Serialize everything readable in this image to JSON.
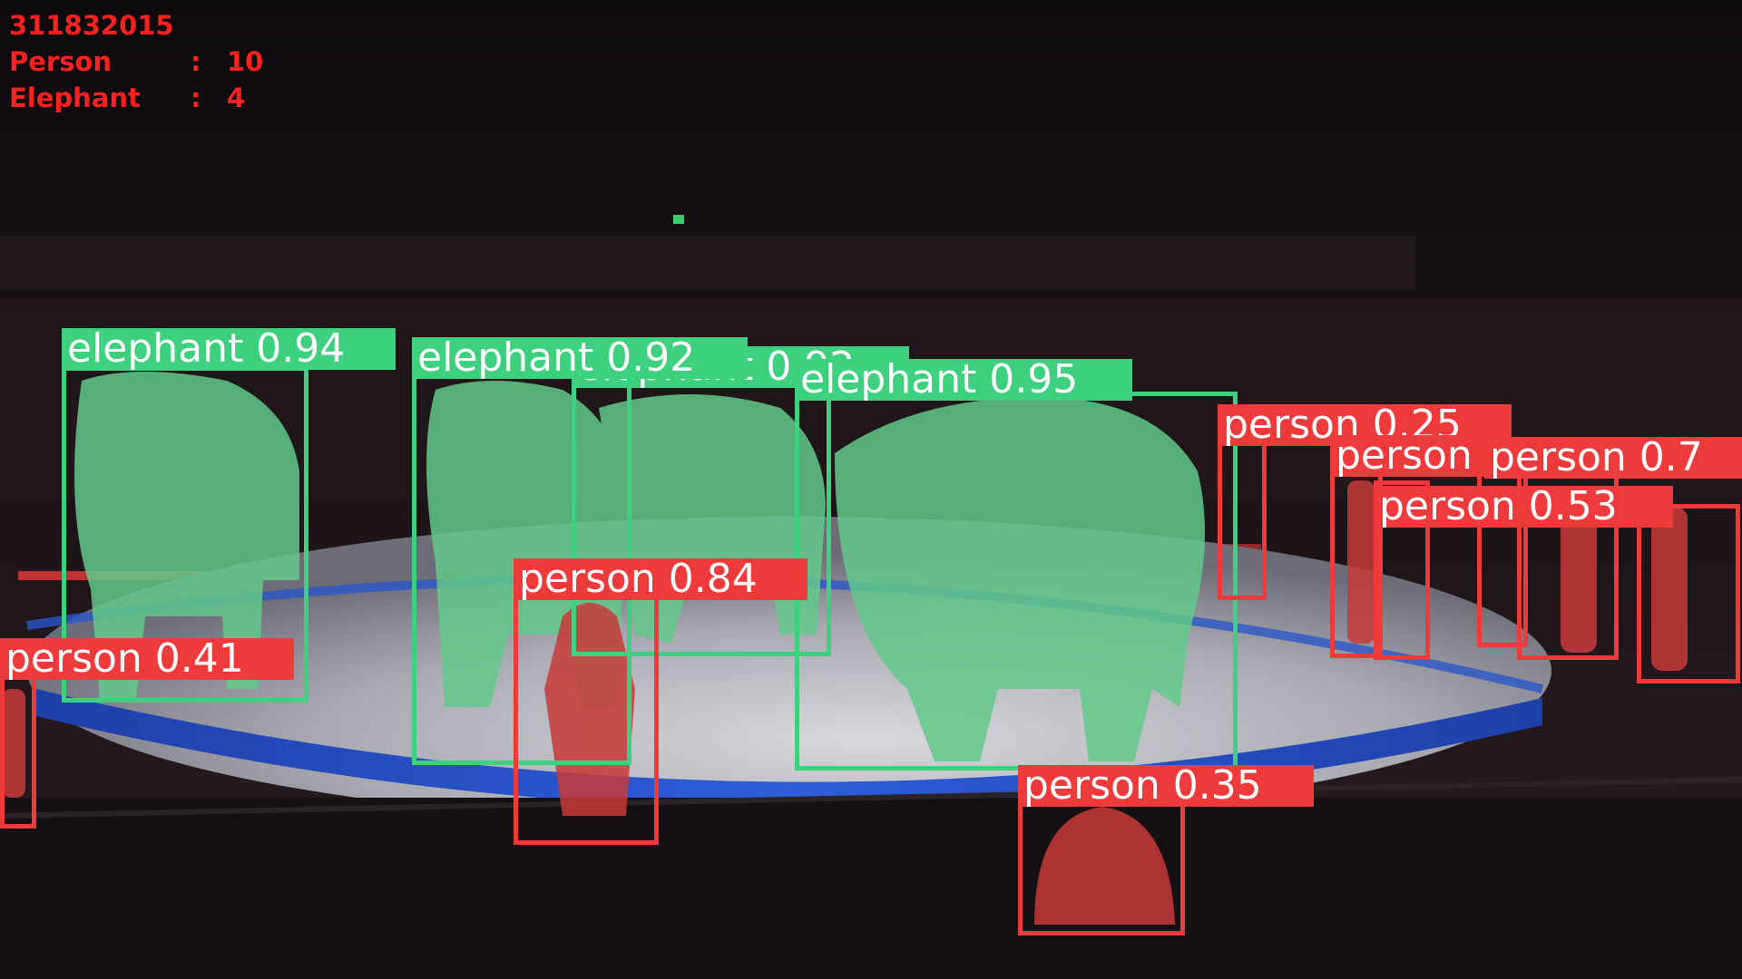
{
  "hud": {
    "frame_id": "311832015",
    "rows": [
      {
        "label": "Person",
        "sep": ":",
        "count": "10"
      },
      {
        "label": "Elephant",
        "sep": ":",
        "count": "4"
      }
    ]
  },
  "colors": {
    "person": "#ee3a3a",
    "elephant": "#3dd07e",
    "hud_text": "#ff2020"
  },
  "detections": [
    {
      "id": "elephant-1",
      "cls": "elephant",
      "label": "elephant 0.94"
    },
    {
      "id": "elephant-2",
      "cls": "elephant",
      "label": "elephant 0.92"
    },
    {
      "id": "elephant-3",
      "cls": "elephant",
      "label": "elephant 0.92"
    },
    {
      "id": "elephant-4",
      "cls": "elephant",
      "label": "elephant 0.95"
    },
    {
      "id": "person-1",
      "cls": "person",
      "label": "person 0.41"
    },
    {
      "id": "person-2",
      "cls": "person",
      "label": "person 0.84"
    },
    {
      "id": "person-3",
      "cls": "person",
      "label": "person 0.35"
    },
    {
      "id": "person-4",
      "cls": "person",
      "label": "person 0.25"
    },
    {
      "id": "person-5",
      "cls": "person",
      "label": "person"
    },
    {
      "id": "person-6",
      "cls": "person",
      "label": "person 0.7"
    },
    {
      "id": "person-7",
      "cls": "person",
      "label": "person 0.53"
    },
    {
      "id": "person-8",
      "cls": "person",
      "label": ""
    },
    {
      "id": "person-9",
      "cls": "person",
      "label": ""
    },
    {
      "id": "person-10",
      "cls": "person",
      "label": ""
    }
  ]
}
